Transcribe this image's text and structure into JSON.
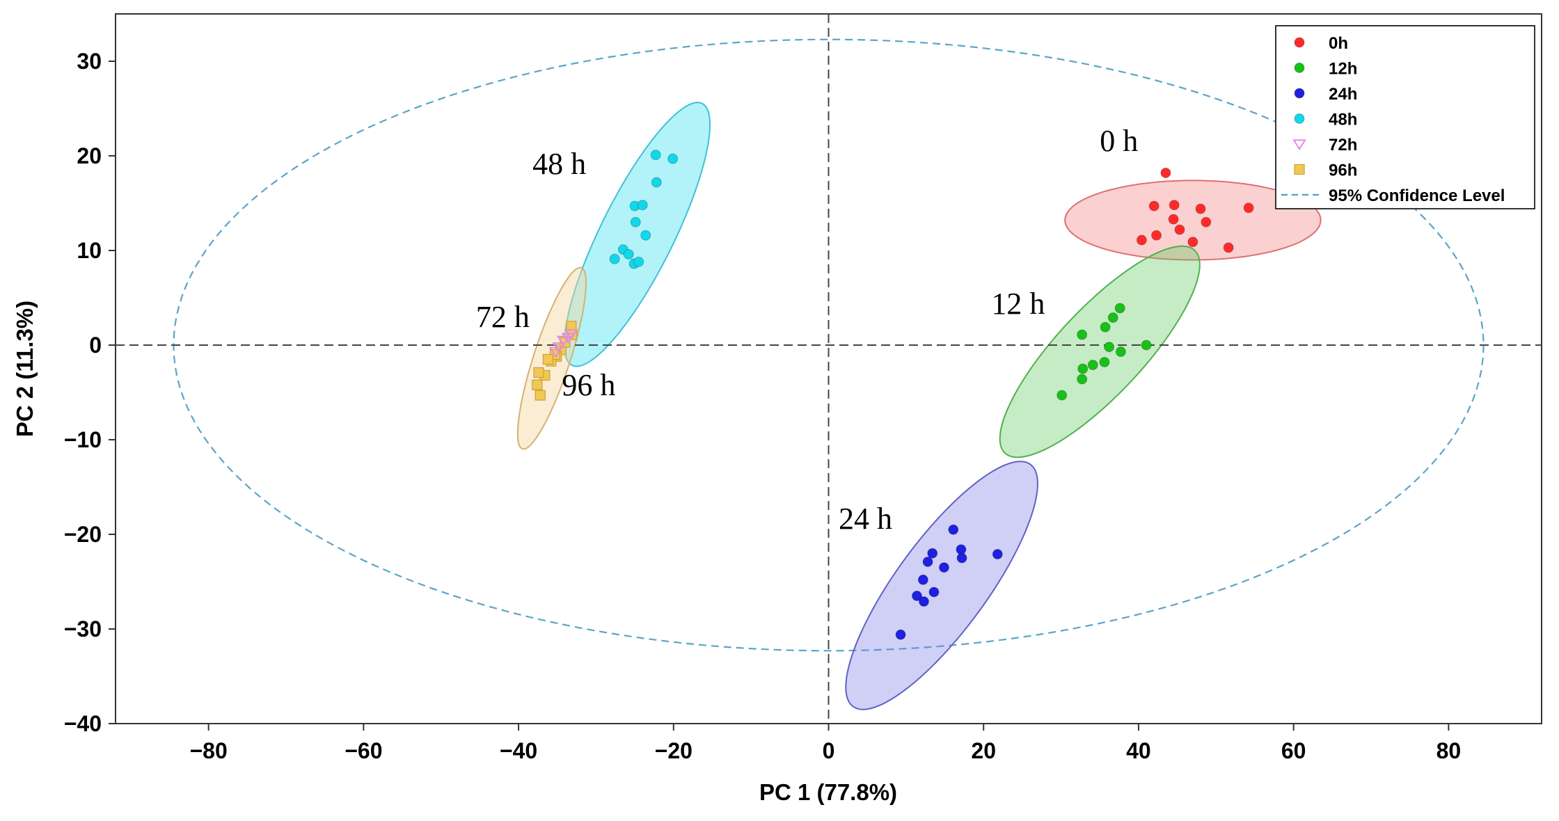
{
  "chart_data": {
    "type": "scatter",
    "title": "",
    "xlabel": "PC 1 (77.8%)",
    "ylabel": "PC 2 (11.3%)",
    "xlim": [
      -92,
      92
    ],
    "ylim": [
      -40,
      35
    ],
    "xticks": [
      -80,
      -60,
      -40,
      -20,
      0,
      20,
      40,
      60,
      80
    ],
    "yticks": [
      30,
      20,
      10,
      0,
      -10,
      -20,
      -30,
      -40
    ],
    "xtick_labels": [
      "−80",
      "−60",
      "−40",
      "−20",
      "0",
      "20",
      "40",
      "60",
      "80"
    ],
    "ytick_labels": [
      "30",
      "20",
      "10",
      "0",
      "−10",
      "−20",
      "−30",
      "−40"
    ],
    "grid": false,
    "legend_position": "top-right",
    "confidence_ellipse": {
      "label": "95% Confidence Level",
      "color": "#5aa5c8",
      "center": [
        0,
        0
      ],
      "rx": 84.5,
      "ry": 32.3
    },
    "series": [
      {
        "name": "0h",
        "label": "0 h",
        "marker": "circle",
        "color": "#ff2a2a",
        "fill": "rgba(240,120,120,0.35)",
        "edge": "#e07070",
        "ellipse": {
          "center": [
            47,
            13.2
          ],
          "rx": 16.5,
          "ry": 4.2,
          "angle": 0
        },
        "points": [
          [
            43.5,
            18.2
          ],
          [
            42,
            14.7
          ],
          [
            44.6,
            14.8
          ],
          [
            48,
            14.4
          ],
          [
            54.2,
            14.5
          ],
          [
            44.5,
            13.3
          ],
          [
            48.7,
            13
          ],
          [
            42.3,
            11.6
          ],
          [
            45.3,
            12.2
          ],
          [
            40.4,
            11.1
          ],
          [
            47,
            10.9
          ],
          [
            51.6,
            10.3
          ]
        ]
      },
      {
        "name": "12h",
        "label": "12 h",
        "marker": "circle",
        "color": "#18c018",
        "fill": "rgba(90,200,90,0.35)",
        "edge": "#50b050",
        "ellipse": {
          "center": [
            35,
            -0.7
          ],
          "rx": 16.3,
          "ry": 5.0,
          "angle": 40
        },
        "points": [
          [
            37.6,
            3.9
          ],
          [
            36.7,
            2.9
          ],
          [
            35.7,
            1.9
          ],
          [
            32.7,
            1.1
          ],
          [
            41,
            0
          ],
          [
            36.2,
            -0.2
          ],
          [
            37.7,
            -0.7
          ],
          [
            35.6,
            -1.8
          ],
          [
            34.1,
            -2.1
          ],
          [
            32.8,
            -2.5
          ],
          [
            32.7,
            -3.6
          ],
          [
            30.1,
            -5.3
          ]
        ]
      },
      {
        "name": "24h",
        "label": "24 h",
        "marker": "circle",
        "color": "#2020e0",
        "fill": "rgba(120,120,230,0.35)",
        "edge": "#6060c8",
        "ellipse": {
          "center": [
            14.6,
            -25.4
          ],
          "rx": 17.2,
          "ry": 5.4,
          "angle": 47
        },
        "points": [
          [
            16.1,
            -19.5
          ],
          [
            17.1,
            -21.6
          ],
          [
            21.8,
            -22.1
          ],
          [
            13.4,
            -22
          ],
          [
            17.2,
            -22.5
          ],
          [
            12.8,
            -22.9
          ],
          [
            14.9,
            -23.5
          ],
          [
            12.2,
            -24.8
          ],
          [
            13.6,
            -26.1
          ],
          [
            11.4,
            -26.5
          ],
          [
            12.3,
            -27.1
          ],
          [
            9.3,
            -30.6
          ]
        ]
      },
      {
        "name": "48h",
        "label": "48 h",
        "marker": "circle",
        "color": "#10d8ea",
        "fill": "rgba(60,225,240,0.4)",
        "edge": "#40c0d8",
        "ellipse": {
          "center": [
            -24.7,
            11.7
          ],
          "rx": 16.2,
          "ry": 4.5,
          "angle": 58
        },
        "points": [
          [
            -22.3,
            20.1
          ],
          [
            -20.1,
            19.7
          ],
          [
            -22.2,
            17.2
          ],
          [
            -25,
            14.7
          ],
          [
            -24,
            14.8
          ],
          [
            -24.9,
            13
          ],
          [
            -23.6,
            11.6
          ],
          [
            -26.5,
            10.1
          ],
          [
            -25.8,
            9.6
          ],
          [
            -27.6,
            9.1
          ],
          [
            -25.1,
            8.6
          ],
          [
            -24.5,
            8.8
          ]
        ]
      },
      {
        "name": "72h",
        "label": "72 h",
        "marker": "triangle-down",
        "color": "#e08ae8",
        "fill": "none",
        "edge": "none",
        "ellipse": null,
        "points": [
          [
            -34.2,
            0.5
          ],
          [
            -33.6,
            0.8
          ],
          [
            -34.8,
            -0.2
          ],
          [
            -33.2,
            1.2
          ],
          [
            -35.2,
            -0.7
          ]
        ]
      },
      {
        "name": "96h",
        "label": "96 h",
        "marker": "square",
        "color": "#f2c852",
        "fill": "rgba(245,215,160,0.45)",
        "edge": "#d8b070",
        "ellipse": {
          "center": [
            -35.7,
            -1.4
          ],
          "rx": 10.3,
          "ry": 2.3,
          "angle": 68
        },
        "points": [
          [
            -33.2,
            2
          ],
          [
            -33.1,
            1.1
          ],
          [
            -34.5,
            -0.5
          ],
          [
            -35.1,
            -1.2
          ],
          [
            -35.8,
            -1.7
          ],
          [
            -36.6,
            -3.2
          ],
          [
            -37.4,
            -2.9
          ],
          [
            -37.6,
            -4.2
          ],
          [
            -37.2,
            -5.3
          ],
          [
            -34,
            0.3
          ],
          [
            -35.3,
            -1
          ],
          [
            -36.2,
            -1.5
          ]
        ]
      }
    ]
  },
  "annotations": [
    {
      "text": "0 h",
      "x": 35,
      "y": 20.5
    },
    {
      "text": "12 h",
      "x": 21,
      "y": 3.3
    },
    {
      "text": "24 h",
      "x": 1.3,
      "y": -19.4
    },
    {
      "text": "48 h",
      "x": -38.2,
      "y": 18.1
    },
    {
      "text": "72 h",
      "x": -45.5,
      "y": 1.9
    },
    {
      "text": "96 h",
      "x": -34.4,
      "y": -5.3
    }
  ]
}
